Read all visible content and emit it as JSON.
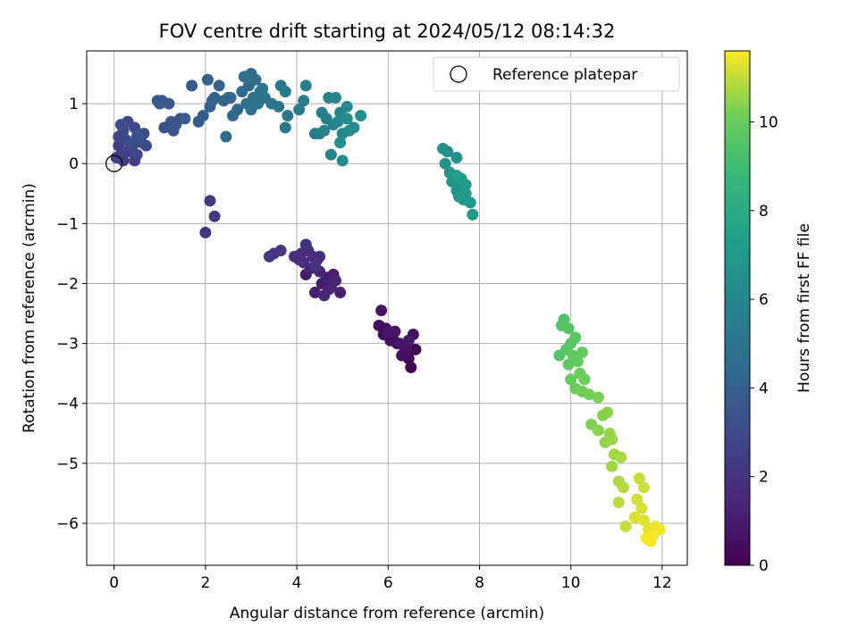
{
  "chart_data": {
    "type": "scatter",
    "title": "FOV centre drift starting at 2024/05/12 08:14:32",
    "xlabel": "Angular distance from reference (arcmin)",
    "ylabel": "Rotation from reference (arcmin)",
    "xlim": [
      -0.6,
      12.55
    ],
    "ylim": [
      -6.7,
      1.88
    ],
    "xticks": [
      0,
      2,
      4,
      6,
      8,
      10,
      12
    ],
    "yticks": [
      -6,
      -5,
      -4,
      -3,
      -2,
      -1,
      0,
      1
    ],
    "grid": true,
    "legend": {
      "position": "top-right",
      "entries": [
        "Reference platepar"
      ]
    },
    "reference_point": {
      "x": 0,
      "y": 0
    },
    "colorbar": {
      "label": "Hours from first FF file",
      "colormap": "viridis",
      "range": [
        0,
        11.6
      ],
      "ticks": [
        0,
        2,
        4,
        6,
        8,
        10
      ]
    },
    "points": [
      [
        6.35,
        -3.05,
        0.0
      ],
      [
        6.6,
        -3.1,
        0.05
      ],
      [
        6.5,
        -3.4,
        0.1
      ],
      [
        6.45,
        -3.25,
        0.15
      ],
      [
        6.2,
        -3.0,
        0.2
      ],
      [
        6.05,
        -2.95,
        0.25
      ],
      [
        5.9,
        -2.85,
        0.3
      ],
      [
        5.8,
        -2.7,
        0.35
      ],
      [
        5.95,
        -2.75,
        0.4
      ],
      [
        6.1,
        -2.9,
        0.45
      ],
      [
        6.3,
        -3.2,
        0.5
      ],
      [
        6.55,
        -2.85,
        0.55
      ],
      [
        6.4,
        -3.1,
        0.6
      ],
      [
        5.85,
        -2.45,
        0.65
      ],
      [
        6.15,
        -2.8,
        0.7
      ],
      [
        6.25,
        -3.0,
        0.75
      ],
      [
        6.0,
        -2.8,
        0.8
      ],
      [
        6.45,
        -2.95,
        0.85
      ],
      [
        4.2,
        -1.85,
        0.9
      ],
      [
        4.55,
        -2.0,
        0.95
      ],
      [
        4.75,
        -2.05,
        1.0
      ],
      [
        4.8,
        -1.85,
        1.05
      ],
      [
        4.4,
        -2.15,
        1.1
      ],
      [
        4.95,
        -2.15,
        1.15
      ],
      [
        4.65,
        -1.9,
        1.2
      ],
      [
        4.3,
        -1.75,
        1.25
      ],
      [
        4.5,
        -1.8,
        1.3
      ],
      [
        4.7,
        -2.1,
        1.35
      ],
      [
        4.85,
        -1.95,
        1.4
      ],
      [
        4.45,
        -1.6,
        1.45
      ],
      [
        4.6,
        -2.2,
        1.5
      ],
      [
        4.15,
        -1.65,
        1.55
      ],
      [
        4.25,
        -1.45,
        1.6
      ],
      [
        4.1,
        -1.5,
        1.65
      ],
      [
        4.35,
        -1.55,
        1.7
      ],
      [
        4.5,
        -1.55,
        1.75
      ],
      [
        4.05,
        -1.6,
        1.8
      ],
      [
        3.95,
        -1.55,
        1.85
      ],
      [
        4.2,
        -1.35,
        1.9
      ],
      [
        4.4,
        -1.7,
        1.95
      ],
      [
        3.5,
        -1.5,
        2.0
      ],
      [
        3.65,
        -1.45,
        2.05
      ],
      [
        3.4,
        -1.55,
        2.1
      ],
      [
        2.0,
        -1.15,
        2.15
      ],
      [
        2.2,
        -0.88,
        2.2
      ],
      [
        2.1,
        -0.62,
        2.25
      ],
      [
        0.2,
        0.05,
        2.3
      ],
      [
        0.45,
        0.05,
        2.35
      ],
      [
        0.3,
        0.2,
        2.4
      ],
      [
        0.1,
        0.3,
        2.45
      ],
      [
        0.15,
        0.15,
        2.5
      ],
      [
        0.35,
        0.25,
        2.55
      ],
      [
        0.05,
        0.1,
        2.6
      ],
      [
        0.25,
        0.4,
        2.65
      ],
      [
        0.4,
        0.3,
        2.7
      ],
      [
        0.1,
        0.45,
        2.75
      ],
      [
        0.5,
        0.15,
        2.8
      ],
      [
        0.2,
        0.55,
        2.85
      ],
      [
        0.6,
        0.35,
        2.9
      ],
      [
        0.45,
        0.6,
        2.95
      ],
      [
        0.3,
        0.7,
        3.0
      ],
      [
        0.15,
        0.65,
        3.05
      ],
      [
        0.7,
        0.3,
        3.1
      ],
      [
        0.65,
        0.5,
        3.15
      ],
      [
        0.5,
        0.45,
        3.2
      ],
      [
        0.35,
        0.35,
        3.25
      ],
      [
        1.1,
        0.6,
        3.3
      ],
      [
        1.3,
        0.55,
        3.35
      ],
      [
        1.45,
        0.75,
        3.4
      ],
      [
        1.25,
        0.7,
        3.45
      ],
      [
        1.35,
        0.65,
        3.5
      ],
      [
        1.0,
        1.0,
        3.55
      ],
      [
        0.95,
        1.05,
        3.6
      ],
      [
        1.2,
        1.0,
        3.65
      ],
      [
        1.05,
        1.05,
        3.7
      ],
      [
        1.55,
        0.75,
        3.75
      ],
      [
        1.7,
        1.3,
        3.8
      ],
      [
        1.85,
        0.7,
        3.85
      ],
      [
        1.95,
        0.8,
        3.9
      ],
      [
        2.1,
        0.95,
        3.95
      ],
      [
        2.15,
        1.05,
        4.0
      ],
      [
        2.3,
        1.3,
        4.05
      ],
      [
        2.05,
        1.4,
        4.1
      ],
      [
        2.2,
        1.1,
        4.15
      ],
      [
        2.4,
        1.05,
        4.2
      ],
      [
        2.5,
        1.1,
        4.25
      ],
      [
        2.6,
        0.8,
        4.3
      ],
      [
        2.55,
        1.1,
        4.35
      ],
      [
        2.7,
        0.9,
        4.4
      ],
      [
        2.45,
        0.45,
        4.45
      ],
      [
        2.8,
        1.2,
        4.5
      ],
      [
        2.85,
        1.45,
        4.55
      ],
      [
        2.95,
        1.3,
        4.6
      ],
      [
        3.0,
        1.5,
        4.65
      ],
      [
        2.9,
        1.0,
        4.7
      ],
      [
        3.05,
        1.1,
        4.75
      ],
      [
        3.1,
        1.4,
        4.8
      ],
      [
        3.2,
        1.2,
        4.85
      ],
      [
        3.0,
        0.9,
        4.9
      ],
      [
        3.3,
        1.1,
        4.95
      ],
      [
        3.15,
        1.0,
        5.0
      ],
      [
        3.25,
        1.25,
        5.05
      ],
      [
        3.45,
        1.0,
        5.1
      ],
      [
        3.6,
        0.95,
        5.15
      ],
      [
        3.65,
        1.3,
        5.2
      ],
      [
        3.75,
        0.6,
        5.25
      ],
      [
        3.8,
        0.8,
        5.3
      ],
      [
        3.75,
        1.2,
        5.35
      ],
      [
        4.05,
        0.9,
        5.4
      ],
      [
        4.15,
        1.05,
        5.45
      ],
      [
        4.2,
        1.3,
        5.5
      ],
      [
        4.4,
        0.5,
        5.55
      ],
      [
        4.55,
        0.85,
        5.6
      ],
      [
        4.65,
        0.75,
        5.65
      ],
      [
        4.6,
        0.55,
        5.7
      ],
      [
        4.5,
        0.5,
        5.75
      ],
      [
        4.7,
        1.1,
        5.8
      ],
      [
        4.8,
        0.65,
        5.85
      ],
      [
        4.75,
        0.15,
        5.9
      ],
      [
        4.85,
        1.1,
        5.95
      ],
      [
        4.9,
        0.7,
        6.0
      ],
      [
        4.95,
        0.85,
        6.05
      ],
      [
        5.0,
        0.5,
        6.1
      ],
      [
        5.1,
        0.95,
        6.15
      ],
      [
        5.0,
        0.05,
        6.2
      ],
      [
        5.15,
        0.55,
        6.25
      ],
      [
        5.25,
        0.6,
        6.3
      ],
      [
        5.4,
        0.8,
        6.35
      ],
      [
        5.1,
        0.75,
        6.4
      ],
      [
        4.95,
        0.35,
        6.45
      ],
      [
        7.2,
        0.25,
        6.5
      ],
      [
        7.3,
        0.2,
        6.55
      ],
      [
        7.25,
        0.0,
        6.6
      ],
      [
        7.35,
        -0.15,
        6.65
      ],
      [
        7.5,
        0.1,
        6.7
      ],
      [
        7.4,
        -0.3,
        6.75
      ],
      [
        7.5,
        -0.45,
        6.8
      ],
      [
        7.6,
        -0.4,
        6.85
      ],
      [
        7.55,
        -0.55,
        6.9
      ],
      [
        7.65,
        -0.6,
        6.95
      ],
      [
        7.7,
        -0.5,
        7.0
      ],
      [
        7.8,
        -0.65,
        7.05
      ],
      [
        7.85,
        -0.85,
        7.1
      ],
      [
        7.6,
        -0.25,
        7.15
      ],
      [
        7.7,
        -0.35,
        7.2
      ],
      [
        7.5,
        -0.2,
        7.25
      ],
      [
        9.85,
        -2.6,
        9.4
      ],
      [
        9.8,
        -2.7,
        9.45
      ],
      [
        9.95,
        -2.75,
        9.5
      ],
      [
        9.75,
        -3.2,
        9.55
      ],
      [
        9.9,
        -3.1,
        9.6
      ],
      [
        10.0,
        -3.0,
        9.65
      ],
      [
        10.1,
        -2.9,
        9.7
      ],
      [
        10.05,
        -3.2,
        9.75
      ],
      [
        9.95,
        -3.35,
        9.8
      ],
      [
        10.15,
        -3.3,
        9.85
      ],
      [
        10.25,
        -3.15,
        9.9
      ],
      [
        10.0,
        -3.6,
        9.95
      ],
      [
        10.2,
        -3.5,
        10.0
      ],
      [
        10.1,
        -3.75,
        10.05
      ],
      [
        10.3,
        -3.6,
        10.1
      ],
      [
        10.25,
        -3.8,
        10.15
      ],
      [
        10.4,
        -3.85,
        10.2
      ],
      [
        10.6,
        -3.9,
        10.25
      ],
      [
        10.45,
        -4.35,
        10.3
      ],
      [
        10.7,
        -4.2,
        10.35
      ],
      [
        10.6,
        -4.45,
        10.4
      ],
      [
        10.8,
        -4.15,
        10.45
      ],
      [
        10.75,
        -4.65,
        10.5
      ],
      [
        10.85,
        -4.5,
        10.55
      ],
      [
        10.9,
        -4.6,
        10.6
      ],
      [
        10.95,
        -4.85,
        10.65
      ],
      [
        10.9,
        -5.05,
        10.7
      ],
      [
        11.1,
        -4.9,
        10.75
      ],
      [
        11.05,
        -5.3,
        10.8
      ],
      [
        11.15,
        -5.4,
        10.85
      ],
      [
        11.05,
        -5.65,
        10.9
      ],
      [
        11.2,
        -6.05,
        11.0
      ],
      [
        11.5,
        -5.25,
        11.05
      ],
      [
        11.6,
        -5.4,
        11.1
      ],
      [
        11.45,
        -5.6,
        11.15
      ],
      [
        11.55,
        -5.75,
        11.2
      ],
      [
        11.4,
        -5.9,
        11.25
      ],
      [
        11.6,
        -5.95,
        11.3
      ],
      [
        11.7,
        -6.1,
        11.35
      ],
      [
        11.85,
        -6.05,
        11.4
      ],
      [
        11.95,
        -6.1,
        11.45
      ],
      [
        11.75,
        -6.3,
        11.5
      ],
      [
        11.65,
        -6.25,
        11.55
      ],
      [
        11.8,
        -6.2,
        11.6
      ]
    ]
  }
}
